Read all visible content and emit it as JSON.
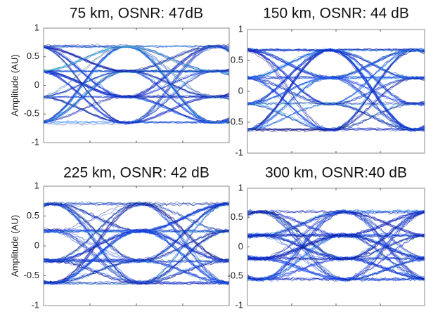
{
  "chart_data": [
    {
      "type": "eye",
      "title": "75 km, OSNR: 47dB",
      "ylabel": "Amplitude (AU)",
      "ylim": [
        -1,
        1
      ],
      "yticks": [
        1,
        0.5,
        0,
        -0.5,
        -1
      ],
      "levels": [
        0.68,
        0.25,
        -0.2,
        -0.65
      ]
    },
    {
      "type": "eye",
      "title": "150 km, OSNR: 44 dB",
      "ylim": [
        -1,
        1
      ],
      "yticks": [
        1,
        0.5,
        0,
        -0.5,
        -1
      ],
      "levels": [
        0.67,
        0.22,
        -0.2,
        -0.62
      ]
    },
    {
      "type": "eye",
      "title": "225 km, OSNR: 42 dB",
      "ylabel": "Amplitude (AU)",
      "ylim": [
        -1,
        1
      ],
      "yticks": [
        1,
        0.5,
        0,
        -0.5,
        -1
      ],
      "levels": [
        0.7,
        0.25,
        -0.25,
        -0.62
      ]
    },
    {
      "type": "eye",
      "title": "300 km, OSNR:40 dB",
      "ylim": [
        -1,
        1
      ],
      "yticks": [
        1,
        0.5,
        0,
        -0.5,
        -1
      ],
      "levels": [
        0.6,
        0.2,
        -0.2,
        -0.55
      ]
    }
  ]
}
